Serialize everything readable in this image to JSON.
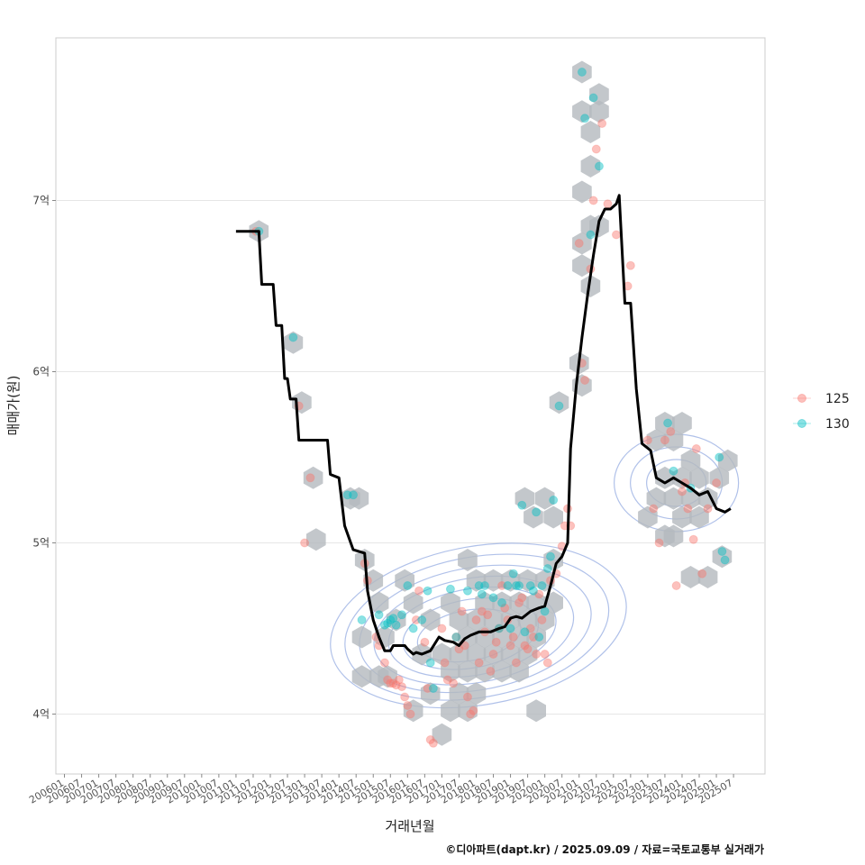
{
  "chart_data": {
    "type": "scatter",
    "title": "",
    "xlabel": "거래년월",
    "ylabel": "매매가(원)",
    "caption": "©디아파트(dapt.kr) / 2025.09.09 / 자료=국토교통부 실거래가",
    "x_unit": "year-month",
    "xlim": [
      "2005-10",
      "2026-06"
    ],
    "ylim": [
      3.65,
      7.95
    ],
    "grid": true,
    "legend_position": "right",
    "colors": {
      "125": "#f8766d",
      "130": "#00bfc4",
      "line": "#000000",
      "hex": "#b4b9be",
      "contour": "#8fa7e0"
    },
    "x_ticks": [
      "200601",
      "200607",
      "200701",
      "200707",
      "200801",
      "200807",
      "200901",
      "200907",
      "201001",
      "201007",
      "201101",
      "201107",
      "201201",
      "201207",
      "201301",
      "201307",
      "201401",
      "201407",
      "201501",
      "201507",
      "201601",
      "201607",
      "201701",
      "201707",
      "201801",
      "201807",
      "201901",
      "201907",
      "202001",
      "202007",
      "202101",
      "202107",
      "202201",
      "202207",
      "202301",
      "202307",
      "202401",
      "202407",
      "202501",
      "202507"
    ],
    "y_ticks": [
      {
        "value": 4,
        "label": "4억"
      },
      {
        "value": 5,
        "label": "5억"
      },
      {
        "value": 6,
        "label": "6억"
      },
      {
        "value": 7,
        "label": "7억"
      }
    ],
    "legend": [
      {
        "key": "125",
        "label": "125"
      },
      {
        "key": "130",
        "label": "130"
      }
    ],
    "series": [
      {
        "name": "125",
        "points": [
          [
            "2011-08",
            6.82
          ],
          [
            "2012-11",
            5.8
          ],
          [
            "2013-03",
            5.38
          ],
          [
            "2013-01",
            5.0
          ],
          [
            "2014-10",
            4.88
          ],
          [
            "2014-11",
            4.78
          ],
          [
            "2015-02",
            4.45
          ],
          [
            "2015-03",
            4.4
          ],
          [
            "2015-05",
            4.3
          ],
          [
            "2015-06",
            4.2
          ],
          [
            "2015-07",
            4.18
          ],
          [
            "2015-08",
            4.18
          ],
          [
            "2015-09",
            4.17
          ],
          [
            "2015-10",
            4.2
          ],
          [
            "2015-11",
            4.16
          ],
          [
            "2015-12",
            4.1
          ],
          [
            "2016-01",
            4.05
          ],
          [
            "2016-02",
            4.0
          ],
          [
            "2016-04",
            4.55
          ],
          [
            "2016-05",
            4.72
          ],
          [
            "2016-07",
            4.42
          ],
          [
            "2016-08",
            4.15
          ],
          [
            "2016-09",
            3.85
          ],
          [
            "2016-10",
            3.83
          ],
          [
            "2017-01",
            4.5
          ],
          [
            "2017-02",
            4.3
          ],
          [
            "2017-03",
            4.2
          ],
          [
            "2017-05",
            4.18
          ],
          [
            "2017-06",
            4.45
          ],
          [
            "2017-07",
            4.38
          ],
          [
            "2017-08",
            4.6
          ],
          [
            "2017-09",
            4.4
          ],
          [
            "2017-10",
            4.1
          ],
          [
            "2017-11",
            4.0
          ],
          [
            "2017-12",
            4.02
          ],
          [
            "2018-01",
            4.55
          ],
          [
            "2018-02",
            4.3
          ],
          [
            "2018-03",
            4.6
          ],
          [
            "2018-04",
            4.48
          ],
          [
            "2018-05",
            4.58
          ],
          [
            "2018-06",
            4.25
          ],
          [
            "2018-07",
            4.35
          ],
          [
            "2018-08",
            4.42
          ],
          [
            "2018-09",
            4.5
          ],
          [
            "2018-10",
            4.75
          ],
          [
            "2018-11",
            4.62
          ],
          [
            "2018-12",
            4.55
          ],
          [
            "2019-01",
            4.4
          ],
          [
            "2019-02",
            4.45
          ],
          [
            "2019-03",
            4.3
          ],
          [
            "2019-04",
            4.65
          ],
          [
            "2019-05",
            4.68
          ],
          [
            "2019-06",
            4.4
          ],
          [
            "2019-07",
            4.38
          ],
          [
            "2019-08",
            4.5
          ],
          [
            "2019-09",
            4.45
          ],
          [
            "2019-10",
            4.35
          ],
          [
            "2019-11",
            4.7
          ],
          [
            "2019-12",
            4.55
          ],
          [
            "2020-01",
            4.35
          ],
          [
            "2020-02",
            4.3
          ],
          [
            "2020-03",
            4.78
          ],
          [
            "2020-05",
            4.82
          ],
          [
            "2020-07",
            4.98
          ],
          [
            "2020-08",
            5.1
          ],
          [
            "2020-09",
            5.2
          ],
          [
            "2020-10",
            5.1
          ],
          [
            "2021-01",
            6.75
          ],
          [
            "2021-02",
            6.05
          ],
          [
            "2021-03",
            5.95
          ],
          [
            "2021-05",
            6.6
          ],
          [
            "2021-06",
            7.0
          ],
          [
            "2021-07",
            7.3
          ],
          [
            "2021-09",
            7.45
          ],
          [
            "2021-11",
            6.98
          ],
          [
            "2022-02",
            6.8
          ],
          [
            "2022-06",
            6.5
          ],
          [
            "2022-07",
            6.62
          ],
          [
            "2023-01",
            5.6
          ],
          [
            "2023-03",
            5.2
          ],
          [
            "2023-05",
            5.0
          ],
          [
            "2023-07",
            5.6
          ],
          [
            "2023-09",
            5.65
          ],
          [
            "2023-11",
            4.75
          ],
          [
            "2024-01",
            5.3
          ],
          [
            "2024-02",
            5.35
          ],
          [
            "2024-03",
            5.2
          ],
          [
            "2024-05",
            5.02
          ],
          [
            "2024-06",
            5.55
          ],
          [
            "2024-08",
            4.82
          ],
          [
            "2024-10",
            5.2
          ],
          [
            "2025-01",
            5.35
          ]
        ]
      },
      {
        "name": "130",
        "points": [
          [
            "2011-09",
            6.82
          ],
          [
            "2012-09",
            6.2
          ],
          [
            "2014-04",
            5.28
          ],
          [
            "2014-06",
            5.28
          ],
          [
            "2014-09",
            4.55
          ],
          [
            "2015-03",
            4.58
          ],
          [
            "2015-05",
            4.52
          ],
          [
            "2015-06",
            4.53
          ],
          [
            "2015-07",
            4.55
          ],
          [
            "2015-08",
            4.56
          ],
          [
            "2015-09",
            4.52
          ],
          [
            "2015-11",
            4.58
          ],
          [
            "2016-01",
            4.75
          ],
          [
            "2016-03",
            4.5
          ],
          [
            "2016-06",
            4.55
          ],
          [
            "2016-08",
            4.72
          ],
          [
            "2016-09",
            4.3
          ],
          [
            "2016-10",
            4.15
          ],
          [
            "2017-04",
            4.73
          ],
          [
            "2017-06",
            4.45
          ],
          [
            "2017-10",
            4.72
          ],
          [
            "2018-02",
            4.75
          ],
          [
            "2018-03",
            4.7
          ],
          [
            "2018-04",
            4.75
          ],
          [
            "2018-07",
            4.68
          ],
          [
            "2018-09",
            4.5
          ],
          [
            "2018-10",
            4.65
          ],
          [
            "2018-12",
            4.75
          ],
          [
            "2019-01",
            4.5
          ],
          [
            "2019-02",
            4.82
          ],
          [
            "2019-03",
            4.75
          ],
          [
            "2019-04",
            4.75
          ],
          [
            "2019-05",
            5.22
          ],
          [
            "2019-06",
            4.48
          ],
          [
            "2019-08",
            4.75
          ],
          [
            "2019-09",
            4.72
          ],
          [
            "2019-10",
            5.18
          ],
          [
            "2019-11",
            4.45
          ],
          [
            "2019-12",
            4.75
          ],
          [
            "2020-01",
            4.6
          ],
          [
            "2020-02",
            4.85
          ],
          [
            "2020-03",
            4.92
          ],
          [
            "2020-04",
            5.25
          ],
          [
            "2020-06",
            5.8
          ],
          [
            "2021-02",
            7.75
          ],
          [
            "2021-03",
            7.48
          ],
          [
            "2021-05",
            6.8
          ],
          [
            "2021-06",
            7.6
          ],
          [
            "2021-08",
            7.2
          ],
          [
            "2023-08",
            5.7
          ],
          [
            "2023-10",
            5.42
          ],
          [
            "2024-04",
            5.32
          ],
          [
            "2025-02",
            5.5
          ],
          [
            "2025-03",
            4.95
          ],
          [
            "2025-04",
            4.9
          ]
        ]
      }
    ],
    "trend_line": [
      [
        "2011-01",
        6.82
      ],
      [
        "2011-09",
        6.82
      ],
      [
        "2011-10",
        6.51
      ],
      [
        "2012-02",
        6.51
      ],
      [
        "2012-03",
        6.27
      ],
      [
        "2012-05",
        6.27
      ],
      [
        "2012-06",
        5.96
      ],
      [
        "2012-07",
        5.96
      ],
      [
        "2012-08",
        5.84
      ],
      [
        "2012-10",
        5.84
      ],
      [
        "2012-11",
        5.6
      ],
      [
        "2013-09",
        5.6
      ],
      [
        "2013-10",
        5.4
      ],
      [
        "2014-01",
        5.38
      ],
      [
        "2014-03",
        5.1
      ],
      [
        "2014-06",
        4.96
      ],
      [
        "2014-10",
        4.94
      ],
      [
        "2014-11",
        4.72
      ],
      [
        "2015-01",
        4.55
      ],
      [
        "2015-03",
        4.45
      ],
      [
        "2015-05",
        4.37
      ],
      [
        "2015-07",
        4.37
      ],
      [
        "2015-08",
        4.4
      ],
      [
        "2015-12",
        4.4
      ],
      [
        "2016-01",
        4.38
      ],
      [
        "2016-03",
        4.35
      ],
      [
        "2016-04",
        4.36
      ],
      [
        "2016-06",
        4.35
      ],
      [
        "2016-09",
        4.37
      ],
      [
        "2016-12",
        4.45
      ],
      [
        "2017-02",
        4.43
      ],
      [
        "2017-05",
        4.42
      ],
      [
        "2017-07",
        4.4
      ],
      [
        "2017-09",
        4.44
      ],
      [
        "2017-11",
        4.46
      ],
      [
        "2018-02",
        4.48
      ],
      [
        "2018-06",
        4.48
      ],
      [
        "2018-09",
        4.5
      ],
      [
        "2018-11",
        4.51
      ],
      [
        "2019-01",
        4.56
      ],
      [
        "2019-03",
        4.57
      ],
      [
        "2019-05",
        4.56
      ],
      [
        "2019-08",
        4.6
      ],
      [
        "2019-11",
        4.62
      ],
      [
        "2020-01",
        4.63
      ],
      [
        "2020-03",
        4.75
      ],
      [
        "2020-05",
        4.88
      ],
      [
        "2020-07",
        4.92
      ],
      [
        "2020-09",
        5.0
      ],
      [
        "2020-10",
        5.55
      ],
      [
        "2020-12",
        5.92
      ],
      [
        "2021-02",
        6.2
      ],
      [
        "2021-04",
        6.45
      ],
      [
        "2021-06",
        6.68
      ],
      [
        "2021-08",
        6.88
      ],
      [
        "2021-10",
        6.95
      ],
      [
        "2021-12",
        6.95
      ],
      [
        "2022-02",
        6.98
      ],
      [
        "2022-03",
        7.03
      ],
      [
        "2022-05",
        6.4
      ],
      [
        "2022-07",
        6.4
      ],
      [
        "2022-09",
        5.9
      ],
      [
        "2022-11",
        5.58
      ],
      [
        "2023-02",
        5.54
      ],
      [
        "2023-04",
        5.38
      ],
      [
        "2023-07",
        5.35
      ],
      [
        "2023-10",
        5.38
      ],
      [
        "2024-01",
        5.35
      ],
      [
        "2024-04",
        5.32
      ],
      [
        "2024-07",
        5.28
      ],
      [
        "2024-10",
        5.3
      ],
      [
        "2025-01",
        5.2
      ],
      [
        "2025-04",
        5.18
      ],
      [
        "2025-06",
        5.2
      ]
    ],
    "hex_bins": [
      [
        "2011-09",
        6.82
      ],
      [
        "2012-09",
        6.17
      ],
      [
        "2012-12",
        5.82
      ],
      [
        "2013-04",
        5.38
      ],
      [
        "2013-05",
        5.02
      ],
      [
        "2014-05",
        5.26
      ],
      [
        "2014-08",
        5.26
      ],
      [
        "2014-10",
        4.9
      ],
      [
        "2015-01",
        4.78
      ],
      [
        "2015-03",
        4.65
      ],
      [
        "2015-05",
        4.45
      ],
      [
        "2014-09",
        4.45
      ],
      [
        "2014-09",
        4.22
      ],
      [
        "2015-03",
        4.22
      ],
      [
        "2015-06",
        4.22
      ],
      [
        "2015-09",
        4.55
      ],
      [
        "2015-12",
        4.78
      ],
      [
        "2016-03",
        4.65
      ],
      [
        "2016-03",
        4.02
      ],
      [
        "2016-06",
        4.35
      ],
      [
        "2016-09",
        4.55
      ],
      [
        "2016-09",
        4.12
      ],
      [
        "2017-01",
        4.35
      ],
      [
        "2017-01",
        3.88
      ],
      [
        "2017-04",
        4.65
      ],
      [
        "2017-04",
        4.25
      ],
      [
        "2017-04",
        4.02
      ],
      [
        "2017-07",
        4.55
      ],
      [
        "2017-07",
        4.35
      ],
      [
        "2017-07",
        4.12
      ],
      [
        "2017-10",
        4.9
      ],
      [
        "2017-10",
        4.45
      ],
      [
        "2017-10",
        4.25
      ],
      [
        "2017-10",
        4.02
      ],
      [
        "2018-01",
        4.78
      ],
      [
        "2018-01",
        4.55
      ],
      [
        "2018-01",
        4.35
      ],
      [
        "2018-01",
        4.12
      ],
      [
        "2018-04",
        4.65
      ],
      [
        "2018-04",
        4.45
      ],
      [
        "2018-04",
        4.25
      ],
      [
        "2018-07",
        4.78
      ],
      [
        "2018-07",
        4.55
      ],
      [
        "2018-07",
        4.35
      ],
      [
        "2018-10",
        4.65
      ],
      [
        "2018-10",
        4.45
      ],
      [
        "2018-10",
        4.25
      ],
      [
        "2019-01",
        4.78
      ],
      [
        "2019-01",
        4.55
      ],
      [
        "2019-01",
        4.35
      ],
      [
        "2019-04",
        4.65
      ],
      [
        "2019-04",
        4.45
      ],
      [
        "2019-04",
        4.25
      ],
      [
        "2019-06",
        5.26
      ],
      [
        "2019-07",
        4.78
      ],
      [
        "2019-07",
        4.55
      ],
      [
        "2019-07",
        4.35
      ],
      [
        "2019-09",
        5.15
      ],
      [
        "2019-10",
        4.65
      ],
      [
        "2019-10",
        4.45
      ],
      [
        "2019-10",
        4.02
      ],
      [
        "2020-01",
        5.26
      ],
      [
        "2020-01",
        4.78
      ],
      [
        "2020-01",
        4.55
      ],
      [
        "2020-04",
        5.15
      ],
      [
        "2020-04",
        4.9
      ],
      [
        "2020-04",
        4.65
      ],
      [
        "2020-06",
        5.82
      ],
      [
        "2021-01",
        6.05
      ],
      [
        "2021-02",
        5.92
      ],
      [
        "2021-02",
        6.75
      ],
      [
        "2021-02",
        6.62
      ],
      [
        "2021-02",
        7.05
      ],
      [
        "2021-02",
        7.52
      ],
      [
        "2021-02",
        7.75
      ],
      [
        "2021-05",
        7.4
      ],
      [
        "2021-05",
        7.2
      ],
      [
        "2021-05",
        6.85
      ],
      [
        "2021-05",
        6.5
      ],
      [
        "2021-08",
        7.52
      ],
      [
        "2021-08",
        7.62
      ],
      [
        "2021-08",
        6.85
      ],
      [
        "2023-01",
        5.15
      ],
      [
        "2023-04",
        5.6
      ],
      [
        "2023-04",
        5.26
      ],
      [
        "2023-07",
        5.7
      ],
      [
        "2023-07",
        5.38
      ],
      [
        "2023-07",
        5.04
      ],
      [
        "2023-10",
        5.6
      ],
      [
        "2023-10",
        5.26
      ],
      [
        "2023-10",
        5.04
      ],
      [
        "2024-01",
        5.7
      ],
      [
        "2024-01",
        5.38
      ],
      [
        "2024-01",
        5.15
      ],
      [
        "2024-04",
        5.48
      ],
      [
        "2024-04",
        5.26
      ],
      [
        "2024-04",
        4.8
      ],
      [
        "2024-07",
        5.38
      ],
      [
        "2024-07",
        5.15
      ],
      [
        "2024-10",
        4.8
      ],
      [
        "2024-10",
        5.26
      ],
      [
        "2025-02",
        5.38
      ],
      [
        "2025-05",
        5.48
      ],
      [
        "2025-03",
        4.92
      ]
    ]
  }
}
